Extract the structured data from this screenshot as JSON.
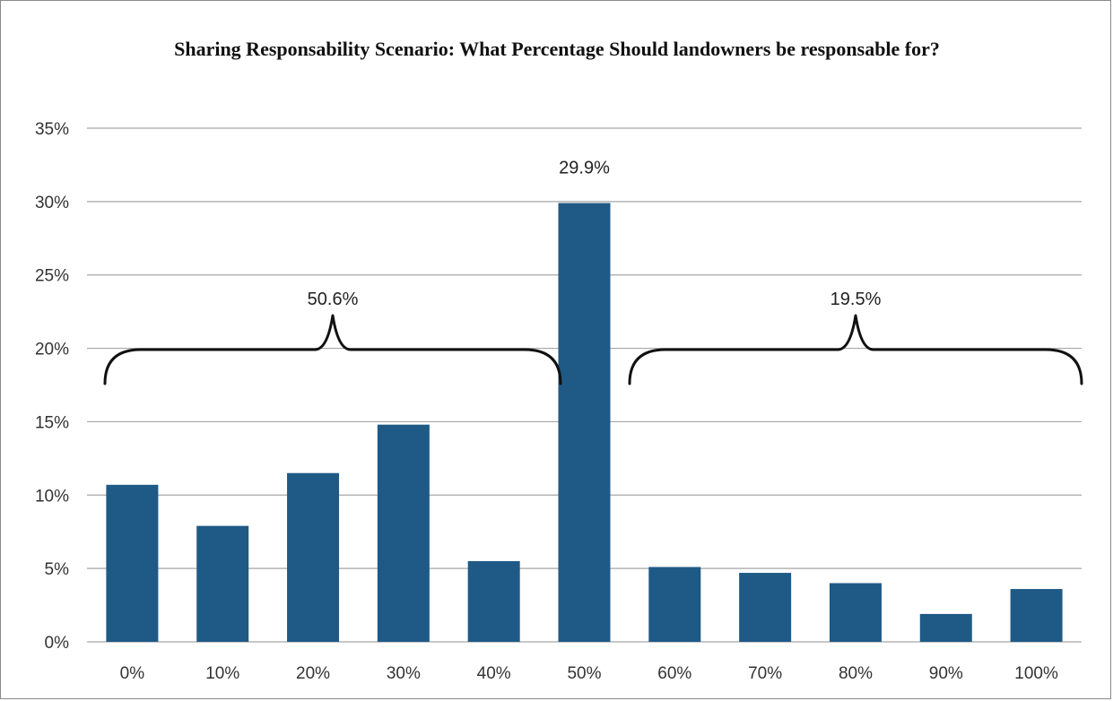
{
  "chart_data": {
    "type": "bar",
    "title": "Sharing Responsability Scenario: What Percentage Should landowners be responsable for?",
    "categories": [
      "0%",
      "10%",
      "20%",
      "30%",
      "40%",
      "50%",
      "60%",
      "70%",
      "80%",
      "90%",
      "100%"
    ],
    "values": [
      10.7,
      7.9,
      11.5,
      14.8,
      5.5,
      29.9,
      5.1,
      4.7,
      4.0,
      1.9,
      3.6
    ],
    "ylim": [
      0,
      35
    ],
    "yticks": [
      0,
      5,
      10,
      15,
      20,
      25,
      30,
      35
    ],
    "ytick_labels": [
      "0%",
      "5%",
      "10%",
      "15%",
      "20%",
      "25%",
      "30%",
      "35%"
    ],
    "xlabel": "",
    "ylabel": "",
    "grid": "horizontal",
    "bar_color": "#1f5a86",
    "data_labels": [
      {
        "category": "50%",
        "text": "29.9%"
      }
    ],
    "annotations": [
      {
        "type": "brace",
        "text": "50.6%",
        "from_category": "0%",
        "to_category": "40%"
      },
      {
        "type": "brace",
        "text": "19.5%",
        "from_category": "60%",
        "to_category": "100%"
      }
    ]
  }
}
